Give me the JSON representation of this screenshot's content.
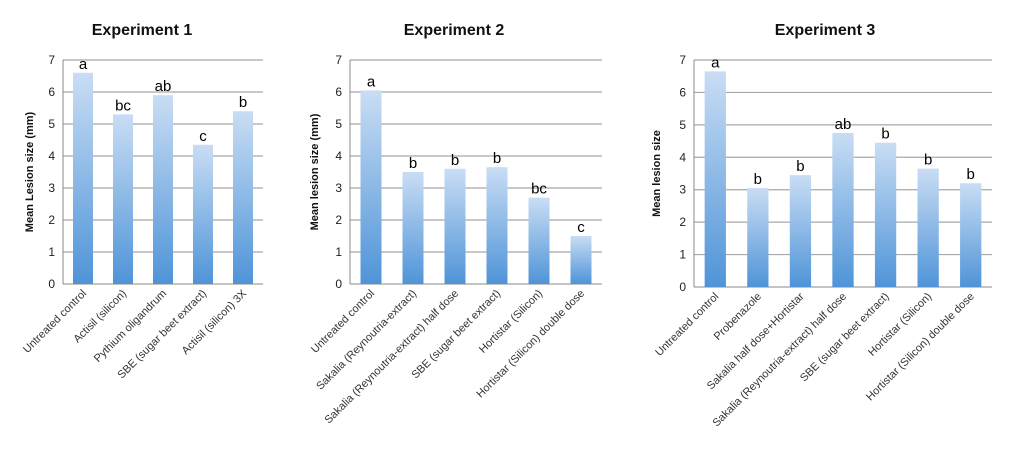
{
  "chart_data": [
    {
      "type": "bar",
      "title": "Experiment 1",
      "ylabel": "Mean Lesion size (mm)",
      "ylim": [
        0,
        7
      ],
      "yticks": [
        0,
        1,
        2,
        3,
        4,
        5,
        6,
        7
      ],
      "grid": true,
      "categories": [
        "Untreated control",
        "Actisil (silicon)",
        "Pythium oligandrum",
        "SBE (sugar beet extract)",
        "Actisil (silicon) 3X"
      ],
      "values": [
        6.6,
        5.3,
        5.9,
        4.35,
        5.4
      ],
      "labels": [
        "a",
        "bc",
        "ab",
        "c",
        "b"
      ]
    },
    {
      "type": "bar",
      "title": "Experiment 2",
      "ylabel": "Mean lesion size (mm)",
      "ylim": [
        0,
        7
      ],
      "yticks": [
        0,
        1,
        2,
        3,
        4,
        5,
        6,
        7
      ],
      "grid": true,
      "categories": [
        "Untreated control",
        "Sakalia (Reynoutria-extract)",
        "Sakalia (Reynoutria-extract) half dose",
        "SBE (sugar beet extract)",
        "Hortistar (Silicon)",
        "Hortistar (Silicon) double dose"
      ],
      "values": [
        6.05,
        3.5,
        3.6,
        3.65,
        2.7,
        1.5
      ],
      "labels": [
        "a",
        "b",
        "b",
        "b",
        "bc",
        "c"
      ]
    },
    {
      "type": "bar",
      "title": "Experiment 3",
      "ylabel": "Mean lesion size",
      "ylim": [
        0,
        7
      ],
      "yticks": [
        0,
        1,
        2,
        3,
        4,
        5,
        6,
        7
      ],
      "grid": true,
      "categories": [
        "Untreated control",
        "Probenazole",
        "Sakalia half dose+Hortistar",
        "Sakalia (Reynoutria-extract) half dose",
        "SBE (sugar beet extract)",
        "Hortistar (Silicon)",
        "Hortistar (Silicon) double dose"
      ],
      "values": [
        6.65,
        3.05,
        3.45,
        4.75,
        4.45,
        3.65,
        3.2
      ],
      "labels": [
        "a",
        "b",
        "b",
        "ab",
        "b",
        "b",
        "b"
      ]
    }
  ],
  "colors": {
    "bar_top": "#c9ddf4",
    "bar_bottom": "#4f94d8",
    "grid": "#a8a8a8",
    "axis": "#888888"
  }
}
